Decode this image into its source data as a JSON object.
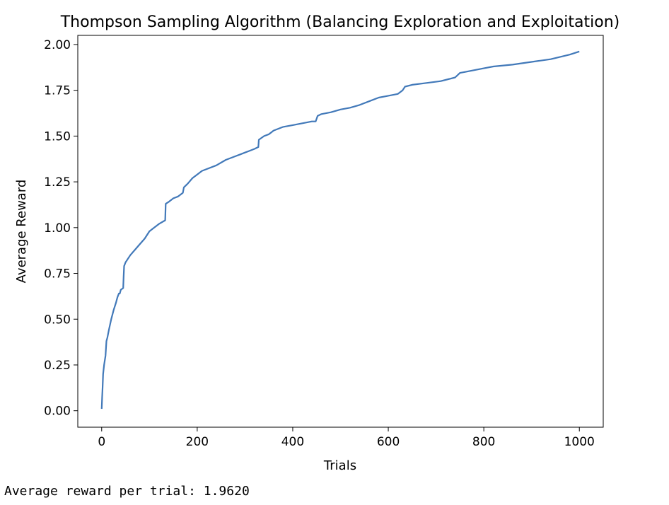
{
  "chart_data": {
    "type": "line",
    "title": "Thompson Sampling Algorithm (Balancing Exploration and Exploitation)",
    "xlabel": "Trials",
    "ylabel": "Average Reward",
    "xlim": [
      -50,
      1050
    ],
    "ylim": [
      -0.09,
      2.05
    ],
    "xticks": [
      0,
      200,
      400,
      600,
      800,
      1000
    ],
    "xtick_labels": [
      "0",
      "200",
      "400",
      "600",
      "800",
      "1000"
    ],
    "yticks": [
      0.0,
      0.25,
      0.5,
      0.75,
      1.0,
      1.25,
      1.5,
      1.75,
      2.0
    ],
    "ytick_labels": [
      "0.00",
      "0.25",
      "0.50",
      "0.75",
      "1.00",
      "1.25",
      "1.50",
      "1.75",
      "2.00"
    ],
    "grid": false,
    "line_color": "#4279b9",
    "series": [
      {
        "x": [
          0,
          1,
          2,
          3,
          5,
          8,
          10,
          12,
          15,
          20,
          25,
          30,
          33,
          36,
          38,
          40,
          45,
          46,
          47,
          50,
          55,
          60,
          70,
          80,
          90,
          100,
          110,
          120,
          133,
          134,
          140,
          150,
          160,
          170,
          172,
          180,
          190,
          200,
          210,
          220,
          240,
          260,
          280,
          290,
          300,
          310,
          320,
          328,
          329,
          340,
          350,
          360,
          380,
          400,
          420,
          440,
          448,
          452,
          460,
          480,
          500,
          520,
          540,
          560,
          580,
          600,
          620,
          630,
          635,
          650,
          680,
          710,
          740,
          750,
          760,
          780,
          800,
          820,
          860,
          900,
          940,
          980,
          1000
        ],
        "y": [
          0.01,
          0.07,
          0.13,
          0.2,
          0.25,
          0.3,
          0.38,
          0.4,
          0.44,
          0.5,
          0.55,
          0.59,
          0.62,
          0.64,
          0.64,
          0.66,
          0.67,
          0.73,
          0.79,
          0.81,
          0.83,
          0.85,
          0.88,
          0.91,
          0.94,
          0.98,
          1.0,
          1.02,
          1.04,
          1.13,
          1.14,
          1.16,
          1.17,
          1.19,
          1.22,
          1.24,
          1.27,
          1.29,
          1.31,
          1.32,
          1.34,
          1.37,
          1.39,
          1.4,
          1.41,
          1.42,
          1.43,
          1.44,
          1.48,
          1.5,
          1.51,
          1.53,
          1.55,
          1.56,
          1.57,
          1.58,
          1.58,
          1.61,
          1.62,
          1.63,
          1.645,
          1.655,
          1.67,
          1.69,
          1.71,
          1.72,
          1.73,
          1.75,
          1.77,
          1.78,
          1.79,
          1.8,
          1.82,
          1.845,
          1.85,
          1.86,
          1.87,
          1.88,
          1.89,
          1.905,
          1.92,
          1.945,
          1.962
        ]
      }
    ]
  },
  "output": {
    "text": "Average reward per trial: 1.9620"
  }
}
